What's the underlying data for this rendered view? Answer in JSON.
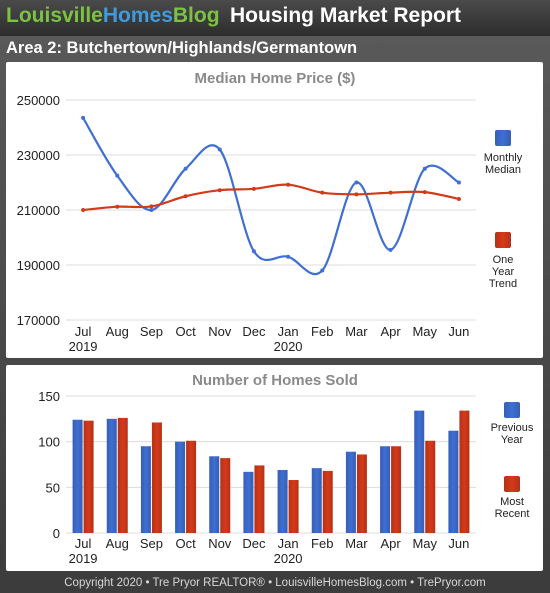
{
  "header": {
    "brand_part1": "Louisville",
    "brand_part2": "Homes",
    "brand_part3": "Blog",
    "report_title": "Housing Market Report",
    "area_title": "Area 2: Butchertown/Highlands/Germantown"
  },
  "footer": {
    "text": "Copyright 2020 • Tre Pryor REALTOR® • LouisvilleHomesBlog.com • TrePryor.com"
  },
  "colors": {
    "blue": "#3f6fd3",
    "red": "#d43a1a",
    "brand_green": "#7cc242",
    "brand_blue": "#3e9bdc"
  },
  "chart_data": [
    {
      "type": "line",
      "title": "Median Home Price ($)",
      "categories": [
        "Jul",
        "Aug",
        "Sep",
        "Oct",
        "Nov",
        "Dec",
        "Jan",
        "Feb",
        "Mar",
        "Apr",
        "May",
        "Jun"
      ],
      "year_labels": [
        "2019",
        "",
        "",
        "",
        "",
        "",
        "2020",
        "",
        "",
        "",
        "",
        ""
      ],
      "ylim": [
        170000,
        250000
      ],
      "yticks": [
        "250000",
        "230000",
        "210000",
        "190000",
        "170000"
      ],
      "series": [
        {
          "name": "Monthly Median",
          "legend_lines": [
            "Monthly",
            "Median"
          ],
          "color": "#3f6fd3",
          "values": [
            243500,
            222500,
            210000,
            225000,
            232000,
            195000,
            193000,
            188000,
            220000,
            195500,
            225000,
            220000
          ]
        },
        {
          "name": "One Year Trend",
          "legend_lines": [
            "One",
            "Year",
            "Trend"
          ],
          "color": "#d43a1a",
          "values": [
            210000,
            211200,
            211300,
            215000,
            217200,
            217700,
            219200,
            216300,
            215700,
            216300,
            216500,
            214000
          ]
        }
      ]
    },
    {
      "type": "bar",
      "title": "Number of Homes Sold",
      "categories": [
        "Jul",
        "Aug",
        "Sep",
        "Oct",
        "Nov",
        "Dec",
        "Jan",
        "Feb",
        "Mar",
        "Apr",
        "May",
        "Jun"
      ],
      "year_labels": [
        "2019",
        "",
        "",
        "",
        "",
        "",
        "2020",
        "",
        "",
        "",
        "",
        ""
      ],
      "ylim": [
        0,
        150
      ],
      "yticks": [
        "150",
        "100",
        "50",
        "0"
      ],
      "series": [
        {
          "name": "Previous Year",
          "legend_lines": [
            "Previous",
            "Year"
          ],
          "color": "#3f6fd3",
          "values": [
            124,
            125,
            95,
            100,
            84,
            67,
            69,
            71,
            89,
            95,
            134,
            112
          ]
        },
        {
          "name": "Most Recent",
          "legend_lines": [
            "Most",
            "Recent"
          ],
          "color": "#d43a1a",
          "values": [
            123,
            126,
            121,
            101,
            82,
            74,
            58,
            68,
            86,
            95,
            101,
            134
          ]
        }
      ]
    }
  ]
}
